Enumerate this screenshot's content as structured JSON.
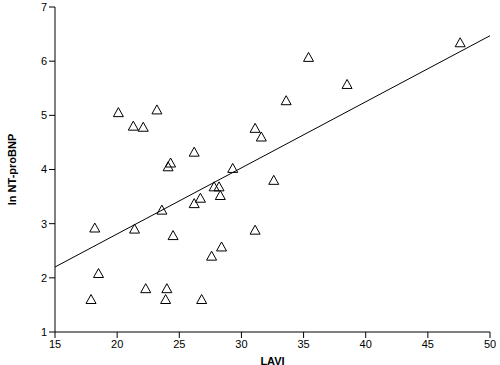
{
  "chart_data": {
    "type": "scatter",
    "x_label": "LAVI",
    "y_label": "ln NT-proBNP",
    "xlim": [
      15,
      50
    ],
    "ylim": [
      1,
      7
    ],
    "xticks": [
      15,
      20,
      25,
      30,
      35,
      40,
      45,
      50
    ],
    "yticks": [
      1,
      2,
      3,
      4,
      5,
      6,
      7
    ],
    "grid": false,
    "series": [
      {
        "type": "scatter",
        "marker": "triangle",
        "color": "#000000",
        "x": [
          17.9,
          18.2,
          18.5,
          20.1,
          21.3,
          21.4,
          22.1,
          22.3,
          23.2,
          23.6,
          23.9,
          24.0,
          24.1,
          24.3,
          24.5,
          26.2,
          26.2,
          26.7,
          26.8,
          27.6,
          27.8,
          28.2,
          28.3,
          28.4,
          29.3,
          31.1,
          31.1,
          31.6,
          32.6,
          33.6,
          35.4,
          38.5,
          47.6
        ],
        "values": [
          1.6,
          2.92,
          2.08,
          5.05,
          4.8,
          2.9,
          4.78,
          1.8,
          5.1,
          3.25,
          1.6,
          1.8,
          4.05,
          4.12,
          2.78,
          4.32,
          3.37,
          3.47,
          1.6,
          2.4,
          3.68,
          3.68,
          3.52,
          2.57,
          4.02,
          2.88,
          4.76,
          4.6,
          3.8,
          5.27,
          6.07,
          5.57,
          6.34
        ]
      },
      {
        "type": "line",
        "line_style": "solid",
        "color": "#000000",
        "x": [
          15,
          50
        ],
        "values": [
          2.2,
          6.47
        ]
      }
    ]
  }
}
